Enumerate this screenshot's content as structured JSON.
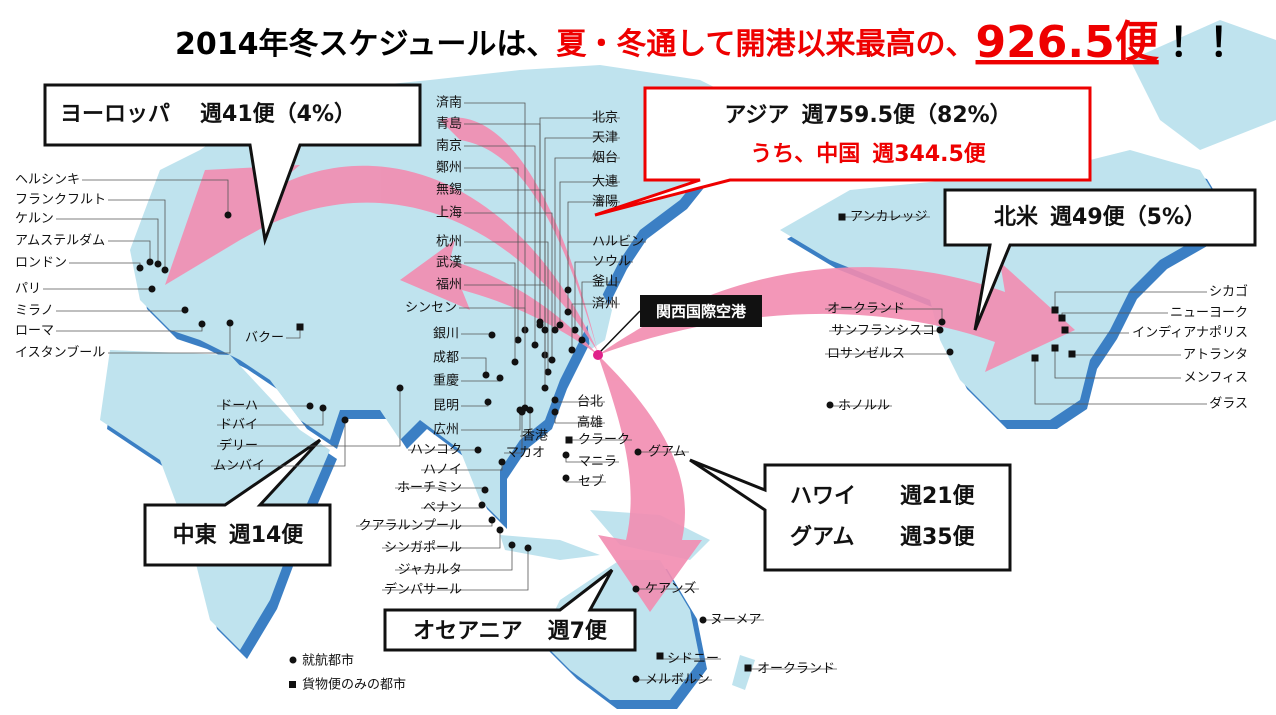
{
  "title": {
    "lead": "2014年冬スケジュールは、",
    "highlight": "夏・冬通して開港以来最高の、",
    "total": "926.5便",
    "exclaim": "！！"
  },
  "regions": {
    "europe": {
      "name": "ヨーロッパ",
      "flights": "週41便（4%）"
    },
    "asia": {
      "name": "アジア",
      "flights": "週759.5便（82%）",
      "china": "うち、中国",
      "china_flights": "週344.5便"
    },
    "north_america": {
      "name": "北米",
      "flights": "週49便（5%）"
    },
    "middle_east": {
      "name": "中東",
      "flights": "週14便"
    },
    "oceania": {
      "name": "オセアニア",
      "flights": "週7便"
    },
    "pacific": [
      {
        "name": "ハワイ",
        "flights": "週21便"
      },
      {
        "name": "グアム",
        "flights": "週35便"
      }
    ]
  },
  "hub": "関西国際空港",
  "legend": {
    "city": "就航都市",
    "cargo": "貨物便のみの都市"
  },
  "cities": [
    "ヘルシンキ",
    "フランクフルト",
    "ケルン",
    "アムステルダム",
    "ロンドン",
    "パリ",
    "ミラノ",
    "ローマ",
    "イスタンブール",
    "バクー",
    "ドーハ",
    "ドバイ",
    "デリー",
    "ムンバイ",
    "済南",
    "青島",
    "南京",
    "鄭州",
    "無錫",
    "上海",
    "杭州",
    "武漢",
    "福州",
    "シンセン",
    "銀川",
    "成都",
    "重慶",
    "昆明",
    "広州",
    "北京",
    "天津",
    "烟台",
    "大連",
    "瀋陽",
    "ハルビン",
    "ソウル",
    "釜山",
    "済州",
    "台北",
    "高雄",
    "香港",
    "クラーク",
    "マカオ",
    "マニラ",
    "セブ",
    "ハンコク",
    "ハノイ",
    "ホーチミン",
    "ペナン",
    "クアラルンプール",
    "シンガポール",
    "ジャカルタ",
    "デンパサール",
    "グアム",
    "ケアンズ",
    "ヌーメア",
    "シドニー",
    "メルボルン",
    "オークランド",
    "アンカレッジ",
    "オークランド",
    "サンフランシスコ",
    "ロサンゼルス",
    "ホノルル",
    "シカゴ",
    "ニューヨーク",
    "インディアナポリス",
    "アトランタ",
    "メンフィス",
    "ダラス"
  ]
}
